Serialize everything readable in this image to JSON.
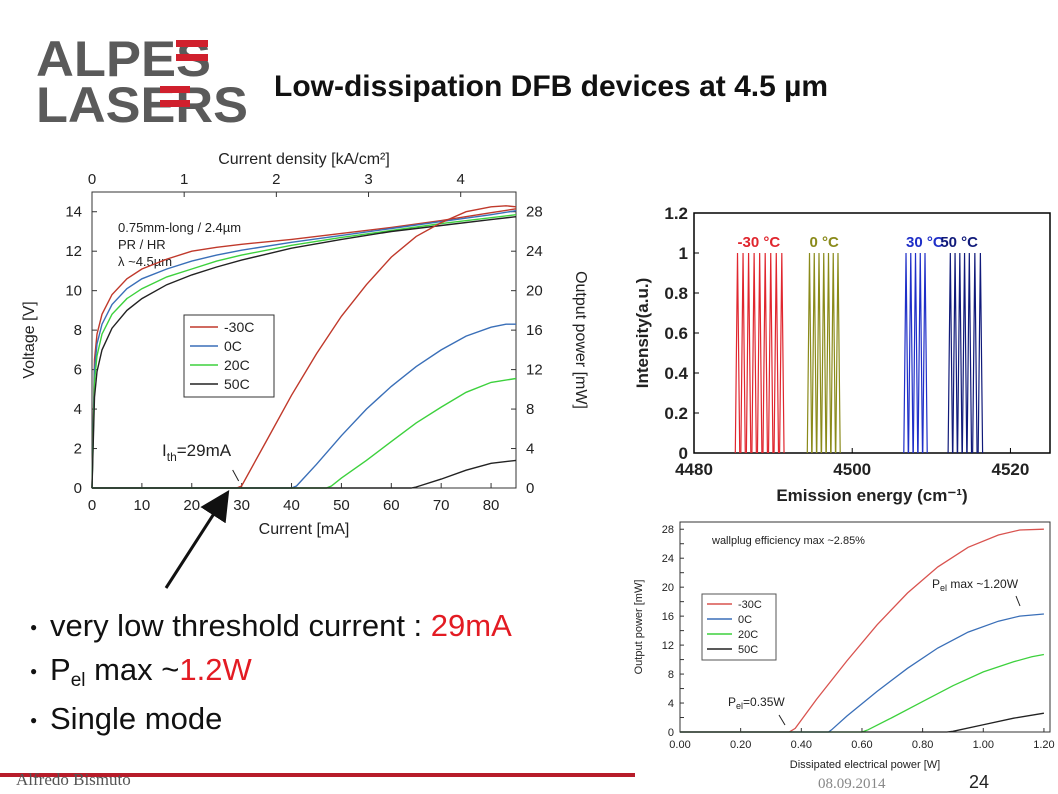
{
  "logo": {
    "line1": "ALPES",
    "line2": "LASERS"
  },
  "title": "Low-dissipation DFB devices at 4.5 µm",
  "bullets": [
    {
      "text": "very low threshold current : ",
      "highlight": "29mA"
    },
    {
      "prefix": "P",
      "subscript": "el",
      "text": " max ~",
      "highlight": "1.2W"
    },
    {
      "text": "Single mode"
    }
  ],
  "footer": {
    "author": "Alfredo Bismuto",
    "date": "08.09.2014",
    "page": "24"
  },
  "colors": {
    "red": "#e31b23",
    "blue": "#3a6fb8",
    "green": "#3dd13d",
    "black": "#222222",
    "brand_gray": "#5a5a5a",
    "brand_red": "#d0202d"
  },
  "chart_data": [
    {
      "type": "line",
      "id": "liv",
      "xlabel": "Current [mA]",
      "ylabel": "Voltage [V]",
      "y2label": "Output power [mW]",
      "x2label": "Current density [kA/cm²]",
      "xlim": [
        0,
        85
      ],
      "ylim": [
        0,
        15
      ],
      "y2lim": [
        0,
        30
      ],
      "x2lim": [
        0,
        4.6
      ],
      "xticks": [
        0,
        10,
        20,
        30,
        40,
        50,
        60,
        70,
        80
      ],
      "yticks": [
        0,
        2,
        4,
        6,
        8,
        10,
        12,
        14
      ],
      "y2ticks": [
        0,
        4,
        8,
        12,
        16,
        20,
        24,
        28
      ],
      "x2ticks": [
        0,
        1,
        2,
        3,
        4
      ],
      "info": [
        "0.75mm-long / 2.4µm",
        "PR / HR",
        "λ ~4.5µm"
      ],
      "annotation": {
        "text": "I",
        "sub": "th",
        "rest": "=29mA",
        "x": 29
      },
      "legend": [
        "-30C",
        "0C",
        "20C",
        "50C"
      ],
      "voltage_series": [
        {
          "name": "-30C",
          "color": "#c0392b",
          "x": [
            0,
            0.5,
            1,
            2,
            4,
            7,
            10,
            15,
            20,
            25,
            30,
            40,
            50,
            60,
            70,
            80,
            85
          ],
          "y": [
            0,
            6.5,
            7.8,
            8.8,
            9.8,
            10.6,
            11.1,
            11.6,
            12.0,
            12.2,
            12.35,
            12.6,
            12.9,
            13.2,
            13.55,
            13.95,
            14.15
          ]
        },
        {
          "name": "0C",
          "color": "#3a6fb8",
          "x": [
            0,
            0.5,
            1,
            2,
            4,
            7,
            10,
            15,
            20,
            25,
            30,
            40,
            50,
            60,
            70,
            80,
            85
          ],
          "y": [
            0,
            6.0,
            7.3,
            8.3,
            9.3,
            10.1,
            10.6,
            11.1,
            11.5,
            11.8,
            12.05,
            12.45,
            12.8,
            13.15,
            13.5,
            13.85,
            14.05
          ]
        },
        {
          "name": "20C",
          "color": "#3dd13d",
          "x": [
            0,
            0.5,
            1,
            2,
            4,
            7,
            10,
            15,
            20,
            25,
            30,
            40,
            50,
            60,
            70,
            80,
            85
          ],
          "y": [
            0,
            5.4,
            6.7,
            7.8,
            8.8,
            9.6,
            10.1,
            10.7,
            11.1,
            11.5,
            11.8,
            12.3,
            12.7,
            13.05,
            13.4,
            13.7,
            13.85
          ]
        },
        {
          "name": "50C",
          "color": "#222222",
          "x": [
            0,
            0.5,
            1,
            2,
            4,
            7,
            10,
            15,
            20,
            25,
            30,
            40,
            50,
            60,
            70,
            80,
            85
          ],
          "y": [
            0,
            4.6,
            5.9,
            7.0,
            8.1,
            9.0,
            9.6,
            10.3,
            10.8,
            11.2,
            11.55,
            12.15,
            12.6,
            13.0,
            13.3,
            13.6,
            13.75
          ]
        }
      ],
      "power_series": [
        {
          "name": "-30C",
          "color": "#c0392b",
          "x": [
            0,
            29,
            30,
            35,
            40,
            45,
            50,
            55,
            60,
            65,
            70,
            75,
            80,
            83,
            85
          ],
          "y": [
            0,
            0,
            0.2,
            4.8,
            9.4,
            13.6,
            17.4,
            20.6,
            23.4,
            25.5,
            26.9,
            28.0,
            28.5,
            28.6,
            28.5
          ]
        },
        {
          "name": "0C",
          "color": "#3a6fb8",
          "x": [
            0,
            40,
            41,
            45,
            50,
            55,
            60,
            65,
            70,
            75,
            80,
            83,
            85
          ],
          "y": [
            0,
            0,
            0.2,
            2.4,
            5.3,
            8.0,
            10.3,
            12.3,
            14.0,
            15.4,
            16.3,
            16.6,
            16.6
          ]
        },
        {
          "name": "20C",
          "color": "#3dd13d",
          "x": [
            0,
            47,
            48,
            50,
            55,
            60,
            65,
            70,
            75,
            80,
            85
          ],
          "y": [
            0,
            0,
            0.2,
            1.0,
            2.8,
            4.7,
            6.6,
            8.2,
            9.7,
            10.7,
            11.1
          ]
        },
        {
          "name": "50C",
          "color": "#222222",
          "x": [
            0,
            64,
            65,
            70,
            75,
            80,
            85
          ],
          "y": [
            0,
            0,
            0.1,
            0.9,
            1.8,
            2.5,
            2.8
          ]
        }
      ]
    },
    {
      "type": "line",
      "id": "spectra",
      "xlabel": "Emission energy (cm⁻¹)",
      "ylabel": "Intensity(a.u.)",
      "xlim": [
        4480,
        4525
      ],
      "ylim": [
        0,
        1.2
      ],
      "xticks": [
        4480,
        4500,
        4520
      ],
      "yticks": [
        0,
        0.2,
        0.4,
        0.6,
        0.8,
        1,
        1.2
      ],
      "groups": [
        {
          "label": "-30 °C",
          "color": "#e0262e",
          "peaks": [
            4485.5,
            4486.2,
            4486.9,
            4487.6,
            4488.3,
            4489.0,
            4489.7,
            4490.4,
            4491.1
          ]
        },
        {
          "label": "0 °C",
          "color": "#8a8a1a",
          "peaks": [
            4494.6,
            4495.2,
            4495.8,
            4496.4,
            4497.0,
            4497.6,
            4498.2
          ]
        },
        {
          "label": "30 °C",
          "color": "#1f2fc8",
          "peaks": [
            4506.8,
            4507.4,
            4508.0,
            4508.6,
            4509.2
          ]
        },
        {
          "label": "50 °C",
          "color": "#101a7a",
          "peaks": [
            4512.4,
            4513.0,
            4513.6,
            4514.2,
            4514.8,
            4515.5,
            4516.2
          ]
        }
      ]
    },
    {
      "type": "line",
      "id": "wallplug",
      "xlabel": "Dissipated electrical power [W]",
      "ylabel": "Output power [mW]",
      "xlim": [
        0,
        1.22
      ],
      "ylim": [
        0,
        29
      ],
      "xticks": [
        0,
        0.2,
        0.4,
        0.6,
        0.8,
        1.0,
        1.2
      ],
      "xticklabels": [
        "0.00",
        "0.20",
        "0.40",
        "0.60",
        "0.80",
        "1.00",
        "1.20"
      ],
      "yticks": [
        0,
        2,
        4,
        6,
        8,
        10,
        12,
        14,
        16,
        18,
        20,
        22,
        24,
        26,
        28
      ],
      "yticklabels": [
        "0",
        "",
        "4",
        "",
        "8",
        "",
        "12",
        "",
        "16",
        "",
        "20",
        "",
        "24",
        "",
        "28"
      ],
      "note": "wallplug efficiency max ~2.85%",
      "annotation_high": {
        "text": "P",
        "sub": "el",
        "rest": " max ~1.20W"
      },
      "annotation_low": {
        "text": "P",
        "sub": "el",
        "rest": "=0.35W"
      },
      "legend": [
        "-30C",
        "0C",
        "20C",
        "50C"
      ],
      "series": [
        {
          "name": "-30C",
          "color": "#d9534f",
          "x": [
            0,
            0.36,
            0.38,
            0.45,
            0.55,
            0.65,
            0.75,
            0.85,
            0.95,
            1.05,
            1.12,
            1.2
          ],
          "y": [
            0,
            0,
            0.5,
            4.5,
            9.8,
            14.8,
            19.2,
            22.8,
            25.5,
            27.2,
            27.9,
            28.0
          ]
        },
        {
          "name": "0C",
          "color": "#3a6fb8",
          "x": [
            0,
            0.49,
            0.5,
            0.55,
            0.65,
            0.75,
            0.85,
            0.95,
            1.05,
            1.12,
            1.2
          ],
          "y": [
            0,
            0,
            0.3,
            2.2,
            5.6,
            8.8,
            11.6,
            13.8,
            15.3,
            16.0,
            16.3
          ]
        },
        {
          "name": "20C",
          "color": "#3dd13d",
          "x": [
            0,
            0.6,
            0.62,
            0.7,
            0.8,
            0.9,
            1.0,
            1.1,
            1.16,
            1.2
          ],
          "y": [
            0,
            0,
            0.3,
            2.0,
            4.2,
            6.4,
            8.3,
            9.7,
            10.4,
            10.7
          ]
        },
        {
          "name": "50C",
          "color": "#222222",
          "x": [
            0,
            0.88,
            0.9,
            1.0,
            1.1,
            1.2
          ],
          "y": [
            0,
            0,
            0.1,
            1.0,
            1.9,
            2.6
          ]
        }
      ]
    }
  ]
}
